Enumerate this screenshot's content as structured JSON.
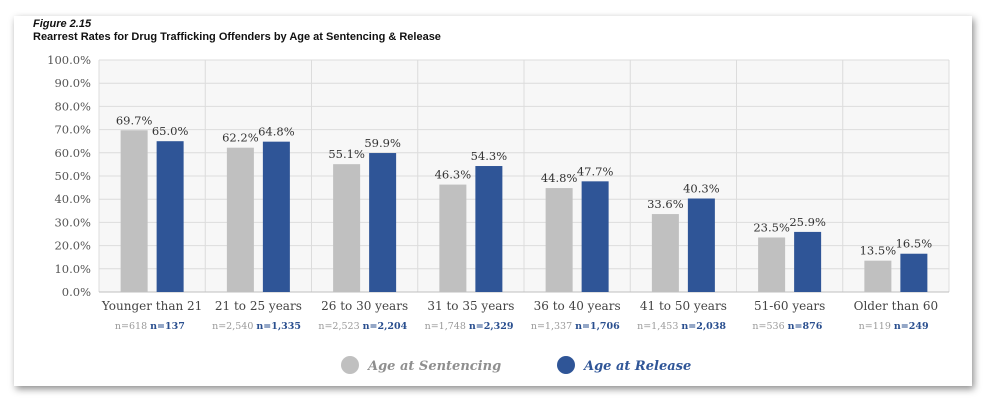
{
  "figure": {
    "label": "Figure 2.15",
    "title": "Rearrest Rates for Drug Trafficking Offenders by Age at Sentencing & Release"
  },
  "colors": {
    "sentencing": "#c0c0c0",
    "release": "#2f5597",
    "grid": "#dcdcdc",
    "plot_bg": "#f7f7f7"
  },
  "chart_data": {
    "type": "bar",
    "title": "Rearrest Rates for Drug Trafficking Offenders by Age at Sentencing & Release",
    "categories": [
      "Younger than 21",
      "21 to 25 years",
      "26 to 30 years",
      "31 to 35 years",
      "36 to 40 years",
      "41 to 50 years",
      "51-60 years",
      "Older than 60"
    ],
    "series": [
      {
        "name": "Age at Sentencing",
        "values": [
          69.7,
          62.2,
          55.1,
          46.3,
          44.8,
          33.6,
          23.5,
          13.5
        ],
        "labels": [
          "69.7%",
          "62.2%",
          "55.1%",
          "46.3%",
          "44.8%",
          "33.6%",
          "23.5%",
          "13.5%"
        ],
        "n": [
          "n=618",
          "n=2,540",
          "n=2,523",
          "n=1,748",
          "n=1,337",
          "n=1,453",
          "n=536",
          "n=119"
        ]
      },
      {
        "name": "Age at Release",
        "values": [
          65.0,
          64.8,
          59.9,
          54.3,
          47.7,
          40.3,
          25.9,
          16.5
        ],
        "labels": [
          "65.0%",
          "64.8%",
          "59.9%",
          "54.3%",
          "47.7%",
          "40.3%",
          "25.9%",
          "16.5%"
        ],
        "n": [
          "n=137",
          "n=1,335",
          "n=2,204",
          "n=2,329",
          "n=1,706",
          "n=2,038",
          "n=876",
          "n=249"
        ]
      }
    ],
    "ylim": [
      0,
      100
    ],
    "yticks": [
      "0.0%",
      "10.0%",
      "20.0%",
      "30.0%",
      "40.0%",
      "50.0%",
      "60.0%",
      "70.0%",
      "80.0%",
      "90.0%",
      "100.0%"
    ],
    "grid": true,
    "legend": "bottom"
  }
}
